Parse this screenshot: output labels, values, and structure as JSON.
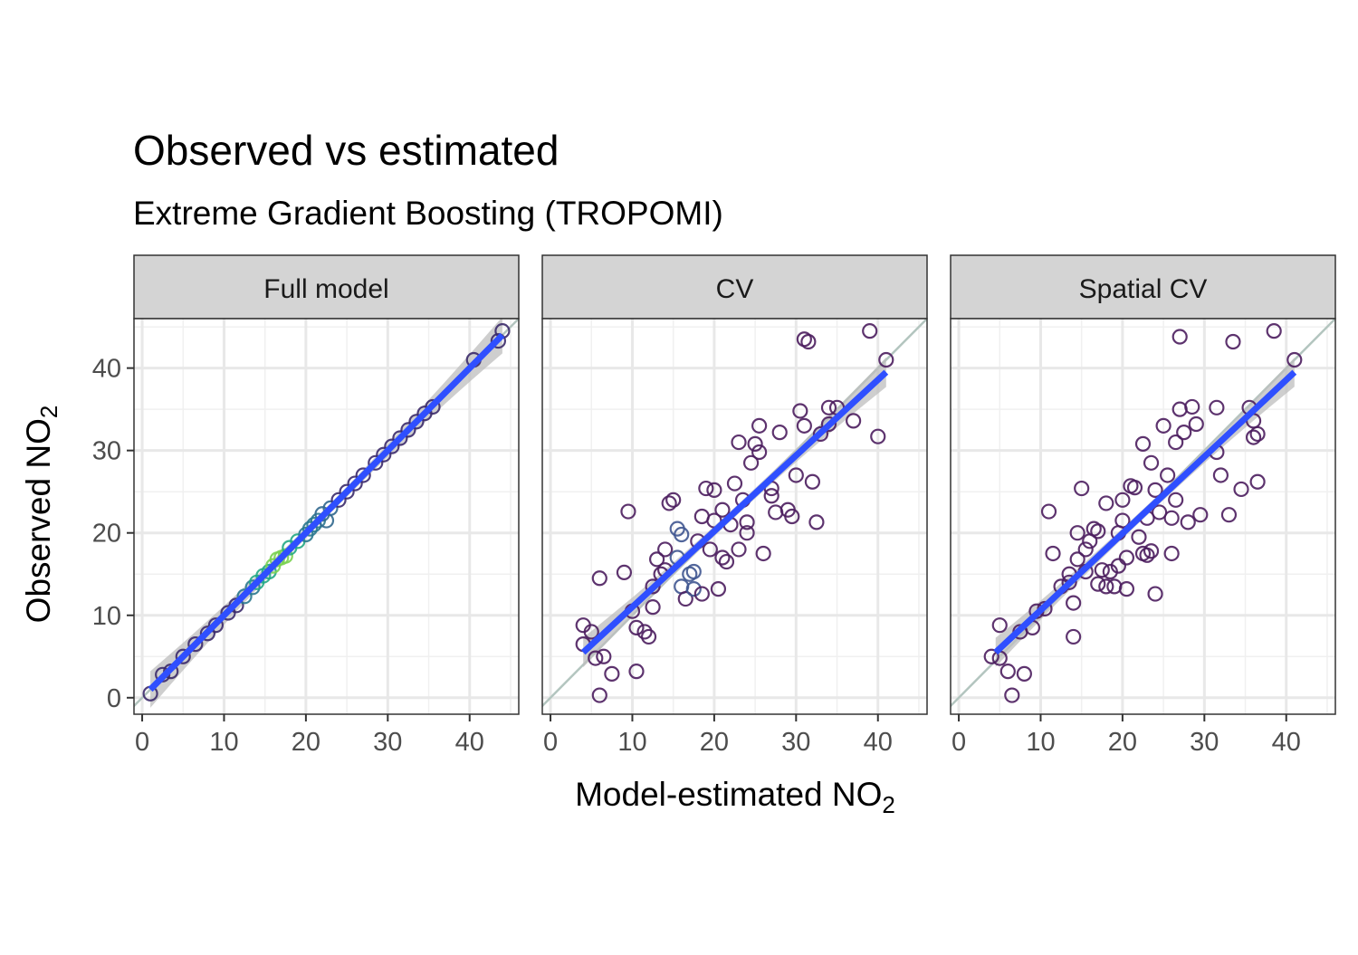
{
  "title": "Observed vs estimated",
  "subtitle": "Extreme Gradient Boosting (TROPOMI)",
  "xlabel": "Model-estimated NO",
  "xlabel_sub": "2",
  "ylabel": "Observed NO",
  "ylabel_sub": "2",
  "colors": {
    "cv_points": "#4b1d5e",
    "fit_line": "#2f4fff",
    "ci_band": "#bdbdbd",
    "identity_line": "#b3c5bf",
    "strip_bg": "#d4d4d4",
    "grid": "#e8e8e8"
  },
  "chart_data": [
    {
      "type": "scatter",
      "panel": "Full model",
      "xlim": [
        -1,
        46
      ],
      "ylim": [
        -2,
        46
      ],
      "x_ticks": [
        "0",
        "10",
        "20",
        "30",
        "40"
      ],
      "y_ticks": [
        "0",
        "10",
        "20",
        "30",
        "40"
      ],
      "identity_line": true,
      "fit": {
        "from": [
          1,
          1
        ],
        "to": [
          44,
          44
        ]
      },
      "points": [
        [
          1,
          0.5
        ],
        [
          2.5,
          2.8
        ],
        [
          3.5,
          3.2
        ],
        [
          5,
          5
        ],
        [
          6.5,
          6.5
        ],
        [
          8,
          7.8
        ],
        [
          9,
          8.8
        ],
        [
          10.5,
          10.3
        ],
        [
          11.5,
          11.2
        ],
        [
          12.5,
          12.3
        ],
        [
          13.5,
          13.4
        ],
        [
          14,
          14
        ],
        [
          14.8,
          14.8
        ],
        [
          15.5,
          15.3
        ],
        [
          16,
          16
        ],
        [
          16.5,
          16.8
        ],
        [
          17,
          17
        ],
        [
          17.5,
          17.2
        ],
        [
          18,
          18.2
        ],
        [
          19,
          19
        ],
        [
          20,
          19.8
        ],
        [
          20.5,
          20.5
        ],
        [
          21,
          21
        ],
        [
          21.5,
          21.5
        ],
        [
          22,
          22.3
        ],
        [
          22.5,
          21.5
        ],
        [
          23,
          23
        ],
        [
          24,
          24
        ],
        [
          25,
          25
        ],
        [
          26,
          26
        ],
        [
          27,
          27
        ],
        [
          28.5,
          28.5
        ],
        [
          29.5,
          29.5
        ],
        [
          30.5,
          30.5
        ],
        [
          31.5,
          31.5
        ],
        [
          32.5,
          32.5
        ],
        [
          33.5,
          33.5
        ],
        [
          34.5,
          34.5
        ],
        [
          35.5,
          35.3
        ],
        [
          40.5,
          41
        ],
        [
          43.5,
          43.3
        ],
        [
          44,
          44.5
        ]
      ]
    },
    {
      "type": "scatter",
      "panel": "CV",
      "xlim": [
        -1,
        46
      ],
      "ylim": [
        -2,
        46
      ],
      "x_ticks": [
        "0",
        "10",
        "20",
        "30",
        "40"
      ],
      "y_ticks": [
        "0",
        "10",
        "20",
        "30",
        "40"
      ],
      "identity_line": true,
      "fit": {
        "from": [
          4,
          5.5
        ],
        "to": [
          41,
          39.5
        ]
      },
      "points": [
        [
          4,
          8.8
        ],
        [
          4,
          6.5
        ],
        [
          5,
          8
        ],
        [
          5.5,
          4.8
        ],
        [
          6,
          14.5
        ],
        [
          6.5,
          5
        ],
        [
          6,
          0.3
        ],
        [
          7.5,
          2.9
        ],
        [
          9,
          15.2
        ],
        [
          9.5,
          22.6
        ],
        [
          10,
          10.5
        ],
        [
          10.5,
          3.2
        ],
        [
          10.5,
          8.5
        ],
        [
          11.5,
          8
        ],
        [
          12,
          7.4
        ],
        [
          12.5,
          11
        ],
        [
          12.5,
          13.5
        ],
        [
          13,
          16.8
        ],
        [
          13.5,
          15
        ],
        [
          14,
          15.5
        ],
        [
          14,
          18
        ],
        [
          14.5,
          23.6
        ],
        [
          15,
          24
        ],
        [
          15.5,
          17
        ],
        [
          15.5,
          20.5
        ],
        [
          16,
          19.8
        ],
        [
          16,
          13.5
        ],
        [
          16.5,
          12
        ],
        [
          17,
          15
        ],
        [
          17.5,
          15.3
        ],
        [
          17.5,
          13.2
        ],
        [
          18,
          19
        ],
        [
          18.5,
          12.6
        ],
        [
          18.5,
          22
        ],
        [
          19,
          25.4
        ],
        [
          19.5,
          18
        ],
        [
          20,
          25.2
        ],
        [
          20,
          21.5
        ],
        [
          20.5,
          13.2
        ],
        [
          21,
          22.8
        ],
        [
          21,
          17
        ],
        [
          21.5,
          16.5
        ],
        [
          22,
          21
        ],
        [
          22.5,
          26
        ],
        [
          23,
          31
        ],
        [
          23,
          18
        ],
        [
          23.5,
          24
        ],
        [
          24,
          20
        ],
        [
          24,
          21.3
        ],
        [
          24.5,
          28.5
        ],
        [
          25,
          30.8
        ],
        [
          25.5,
          29.8
        ],
        [
          25.5,
          33
        ],
        [
          26,
          17.5
        ],
        [
          27,
          24.5
        ],
        [
          27,
          25.4
        ],
        [
          27.5,
          22.5
        ],
        [
          28,
          32.2
        ],
        [
          29,
          22.8
        ],
        [
          29.5,
          22
        ],
        [
          30,
          27
        ],
        [
          30.5,
          34.8
        ],
        [
          31,
          33
        ],
        [
          31,
          43.5
        ],
        [
          31.5,
          43.2
        ],
        [
          32,
          26.2
        ],
        [
          32.5,
          21.3
        ],
        [
          33,
          32
        ],
        [
          34,
          35.2
        ],
        [
          34,
          33.2
        ],
        [
          35,
          35.2
        ],
        [
          37,
          33.6
        ],
        [
          39,
          44.5
        ],
        [
          40,
          31.7
        ],
        [
          41,
          41
        ]
      ]
    },
    {
      "type": "scatter",
      "panel": "Spatial CV",
      "xlim": [
        -1,
        46
      ],
      "ylim": [
        -2,
        46
      ],
      "x_ticks": [
        "0",
        "10",
        "20",
        "30",
        "40"
      ],
      "y_ticks": [
        "0",
        "10",
        "20",
        "30",
        "40"
      ],
      "identity_line": true,
      "fit": {
        "from": [
          4.5,
          5.5
        ],
        "to": [
          41,
          39.5
        ]
      },
      "points": [
        [
          4,
          5
        ],
        [
          5,
          8.8
        ],
        [
          5,
          4.8
        ],
        [
          6,
          3.2
        ],
        [
          6.5,
          0.3
        ],
        [
          7.5,
          8
        ],
        [
          8,
          2.9
        ],
        [
          9,
          8.5
        ],
        [
          9.5,
          10.5
        ],
        [
          10.5,
          10.8
        ],
        [
          11,
          22.6
        ],
        [
          11.5,
          17.5
        ],
        [
          12.5,
          13.5
        ],
        [
          13.5,
          14
        ],
        [
          13.5,
          15
        ],
        [
          14,
          11.5
        ],
        [
          14,
          7.4
        ],
        [
          14.5,
          16.8
        ],
        [
          14.5,
          20
        ],
        [
          15,
          25.4
        ],
        [
          15.5,
          15.3
        ],
        [
          15.5,
          18
        ],
        [
          16,
          19
        ],
        [
          16.5,
          20.5
        ],
        [
          17,
          13.8
        ],
        [
          17,
          20.2
        ],
        [
          17.5,
          15.5
        ],
        [
          18,
          23.6
        ],
        [
          18,
          13.5
        ],
        [
          18.5,
          15.3
        ],
        [
          19,
          13.5
        ],
        [
          19.5,
          20
        ],
        [
          19.5,
          16
        ],
        [
          20,
          24
        ],
        [
          20,
          21.5
        ],
        [
          20.5,
          13.2
        ],
        [
          20.5,
          17
        ],
        [
          21,
          25.7
        ],
        [
          21.5,
          25.5
        ],
        [
          22,
          19.5
        ],
        [
          22.5,
          17.5
        ],
        [
          22.5,
          30.8
        ],
        [
          23,
          17.3
        ],
        [
          23,
          21.8
        ],
        [
          23.5,
          28.5
        ],
        [
          23.5,
          17.8
        ],
        [
          24,
          12.6
        ],
        [
          24,
          25.2
        ],
        [
          24.5,
          22.5
        ],
        [
          25,
          33
        ],
        [
          25.5,
          27
        ],
        [
          26,
          17.5
        ],
        [
          26,
          21.8
        ],
        [
          26.5,
          24
        ],
        [
          26.5,
          31
        ],
        [
          27,
          43.8
        ],
        [
          27,
          35
        ],
        [
          27.5,
          32.2
        ],
        [
          28,
          21.3
        ],
        [
          28.5,
          35.3
        ],
        [
          29,
          33.2
        ],
        [
          29.5,
          22.2
        ],
        [
          31.5,
          35.2
        ],
        [
          31.5,
          29.8
        ],
        [
          32,
          27
        ],
        [
          33,
          22.2
        ],
        [
          33.5,
          43.2
        ],
        [
          34.5,
          25.3
        ],
        [
          35.5,
          35.2
        ],
        [
          36,
          31.6
        ],
        [
          36,
          33.6
        ],
        [
          36.5,
          32
        ],
        [
          36.5,
          26.2
        ],
        [
          38.5,
          44.5
        ],
        [
          41,
          41
        ]
      ]
    }
  ]
}
